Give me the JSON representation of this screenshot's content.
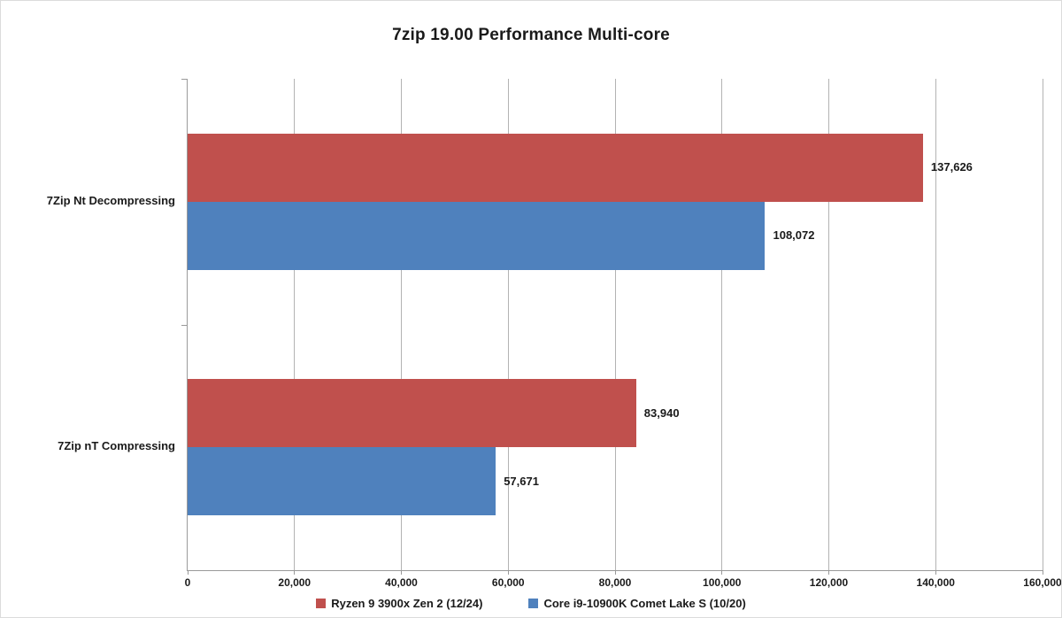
{
  "chart_data": {
    "type": "bar",
    "orientation": "horizontal",
    "title": "7zip 19.00 Performance Multi-core",
    "categories": [
      "7Zip Nt Decompressing",
      "7Zip nT Compressing"
    ],
    "series": [
      {
        "name": "Ryzen 9 3900x Zen 2 (12/24)",
        "color": "#C0504D",
        "values": [
          137626,
          83940
        ],
        "value_labels": [
          "137,626",
          "83,940"
        ]
      },
      {
        "name": "Core i9-10900K Comet Lake S (10/20)",
        "color": "#4F81BD",
        "values": [
          108072,
          57671
        ],
        "value_labels": [
          "108,072",
          "57,671"
        ]
      }
    ],
    "xlim": [
      0,
      160000
    ],
    "x_tick_step": 20000,
    "x_tick_labels": [
      "0",
      "20,000",
      "40,000",
      "60,000",
      "80,000",
      "100,000",
      "120,000",
      "140,000",
      "160,000"
    ],
    "grid": true,
    "legend_position": "bottom",
    "colors": {
      "axis": "#9a9a9a",
      "gridline": "#b3b3b3",
      "text": "#1a1a1a",
      "background": "#ffffff"
    }
  }
}
